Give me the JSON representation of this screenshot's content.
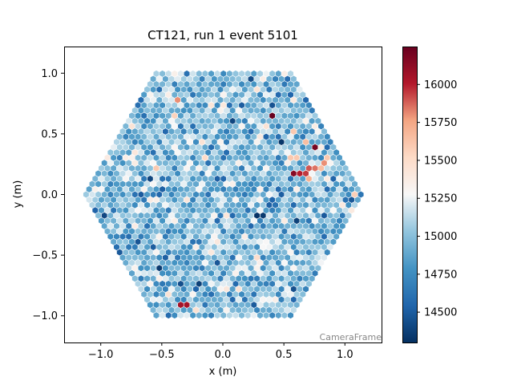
{
  "chart_data": {
    "type": "heatmap",
    "subtype": "hexagonal camera image",
    "title": "CT121, run 1 event 5101",
    "xlabel": "x  (m)",
    "ylabel": "y  (m)",
    "xlim": [
      -1.3,
      1.3
    ],
    "ylim": [
      -1.22,
      1.22
    ],
    "x_ticks": [
      {
        "value": -1.0,
        "label": "−1.0"
      },
      {
        "value": -0.5,
        "label": "−0.5"
      },
      {
        "value": 0.0,
        "label": "0.0"
      },
      {
        "value": 0.5,
        "label": "0.5"
      },
      {
        "value": 1.0,
        "label": "1.0"
      }
    ],
    "y_ticks": [
      {
        "value": -1.0,
        "label": "−1.0"
      },
      {
        "value": -0.5,
        "label": "−0.5"
      },
      {
        "value": 0.0,
        "label": "0.0"
      },
      {
        "value": 0.5,
        "label": "0.5"
      },
      {
        "value": 1.0,
        "label": "1.0"
      }
    ],
    "camera_frame_label": "CameraFrame",
    "camera": {
      "shape": "hexagon",
      "outer_radius_m": 1.17,
      "pixel_pitch_m": 0.05
    },
    "colorbar": {
      "colormap": "RdBu_r",
      "range": [
        14300,
        16250
      ],
      "ticks": [
        {
          "value": 14500,
          "label": "14500"
        },
        {
          "value": 14750,
          "label": "14750"
        },
        {
          "value": 15000,
          "label": "15000"
        },
        {
          "value": 15250,
          "label": "15250"
        },
        {
          "value": 15500,
          "label": "15500"
        },
        {
          "value": 15750,
          "label": "15750"
        },
        {
          "value": 16000,
          "label": "16000"
        }
      ]
    },
    "typical_range": [
      14650,
      15300
    ],
    "bright_pixels": [
      {
        "x": 0.4,
        "y": 0.64,
        "value": 16250
      },
      {
        "x": 0.75,
        "y": 0.38,
        "value": 16200
      },
      {
        "x": 0.58,
        "y": 0.17,
        "value": 16150
      },
      {
        "x": 0.63,
        "y": 0.16,
        "value": 16000
      },
      {
        "x": 0.67,
        "y": 0.19,
        "value": 15950
      },
      {
        "x": 0.72,
        "y": 0.21,
        "value": 15900
      },
      {
        "x": 0.77,
        "y": 0.23,
        "value": 15850
      },
      {
        "x": 0.82,
        "y": 0.25,
        "value": 15800
      },
      {
        "x": 0.7,
        "y": 0.13,
        "value": 15700
      },
      {
        "x": 0.8,
        "y": 0.2,
        "value": 15650
      },
      {
        "x": 0.68,
        "y": 0.45,
        "value": 15650
      },
      {
        "x": 0.6,
        "y": 0.52,
        "value": 15600
      },
      {
        "x": 0.58,
        "y": 0.3,
        "value": 15600
      },
      {
        "x": 0.85,
        "y": 0.3,
        "value": 15600
      },
      {
        "x": -0.38,
        "y": 0.77,
        "value": 15800
      },
      {
        "x": -0.32,
        "y": -0.9,
        "value": 16050
      },
      {
        "x": 0.34,
        "y": 0.58,
        "value": 15450
      }
    ],
    "dark_pixels": [
      {
        "x": 0.28,
        "y": -0.15,
        "value": 14320
      },
      {
        "x": 0.33,
        "y": -0.16,
        "value": 14350
      },
      {
        "x": 0.62,
        "y": -0.22,
        "value": 14380
      },
      {
        "x": -0.5,
        "y": -0.62,
        "value": 14350
      },
      {
        "x": -0.18,
        "y": -0.73,
        "value": 14370
      },
      {
        "x": 0.1,
        "y": 0.6,
        "value": 14400
      },
      {
        "x": -0.6,
        "y": 0.15,
        "value": 14400
      },
      {
        "x": 0.25,
        "y": 0.95,
        "value": 14420
      }
    ]
  }
}
